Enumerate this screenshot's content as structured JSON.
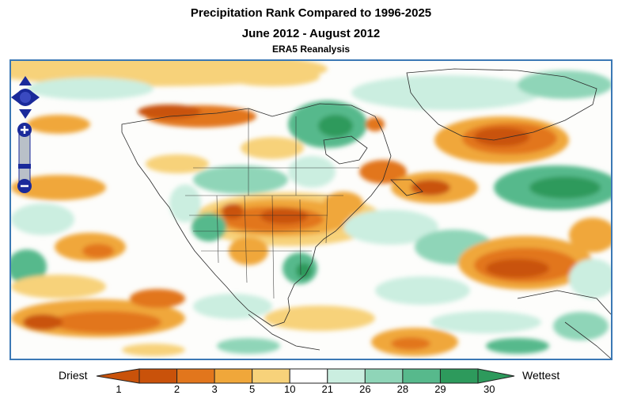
{
  "header": {
    "title": "Precipitation Rank Compared to 1996-2025",
    "period": "June 2012 - August 2012",
    "source": "ERA5 Reanalysis"
  },
  "map": {
    "region": "North America and North Atlantic",
    "controls": {
      "pan_icon": "pan-arrows-icon",
      "zoom_in_icon": "plus-icon",
      "zoom_out_icon": "minus-icon"
    }
  },
  "legend": {
    "low_label": "Driest",
    "high_label": "Wettest",
    "ticks": [
      "1",
      "2",
      "3",
      "5",
      "10",
      "21",
      "26",
      "28",
      "29",
      "30"
    ],
    "colors": [
      "#c9520a",
      "#e2761c",
      "#f0a73a",
      "#f7d27a",
      "#ffffff",
      "#cbeee0",
      "#8fd5b8",
      "#57b98c",
      "#2d9a5c"
    ]
  }
}
